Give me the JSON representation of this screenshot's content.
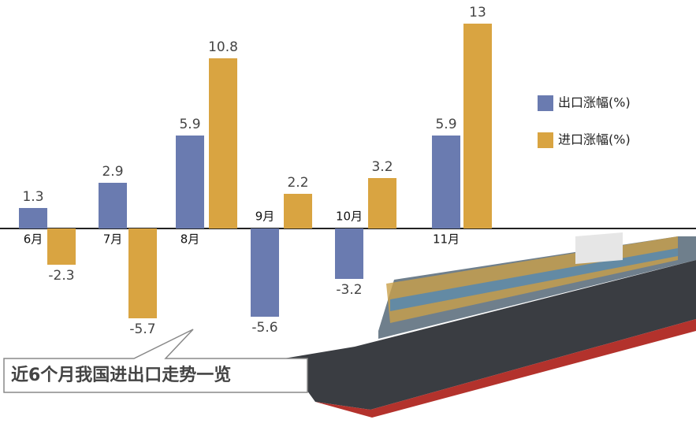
{
  "chart_data": {
    "type": "bar",
    "title": "近6个月我国进出口走势一览",
    "categories": [
      "6月",
      "7月",
      "8月",
      "9月",
      "10月",
      "11月"
    ],
    "series": [
      {
        "name": "出口涨幅(%)",
        "color": "#6a7bb0",
        "values": [
          1.3,
          2.9,
          5.9,
          -5.6,
          -3.2,
          5.9
        ]
      },
      {
        "name": "进口涨幅(%)",
        "color": "#d9a441",
        "values": [
          -2.3,
          -5.7,
          10.8,
          2.2,
          3.2,
          13
        ]
      }
    ]
  }
}
